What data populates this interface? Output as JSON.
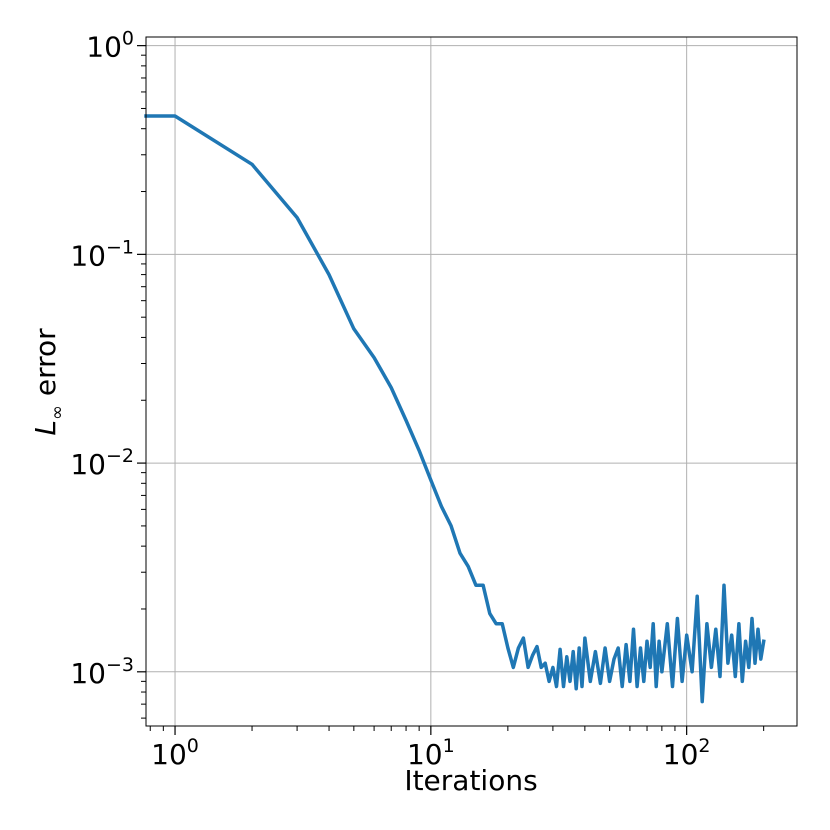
{
  "chart_data": {
    "type": "line",
    "xlabel": "Iterations",
    "ylabel_main": "L",
    "ylabel_sub": "∞",
    "ylabel_rest": " error",
    "xscale": "log",
    "yscale": "log",
    "xlim": [
      0.77,
      270
    ],
    "ylim": [
      0.00055,
      1.1
    ],
    "grid": true,
    "line_color": "#1f77b4",
    "x_ticks": [
      {
        "value": 1,
        "base": "10",
        "exp": "0"
      },
      {
        "value": 10,
        "base": "10",
        "exp": "1"
      },
      {
        "value": 100,
        "base": "10",
        "exp": "2"
      }
    ],
    "y_ticks": [
      {
        "value": 1,
        "base": "10",
        "exp": "0"
      },
      {
        "value": 0.1,
        "base": "10",
        "exp": "−1"
      },
      {
        "value": 0.01,
        "base": "10",
        "exp": "−2"
      },
      {
        "value": 0.001,
        "base": "10",
        "exp": "−3"
      }
    ],
    "series": [
      {
        "x": [
          0.77,
          1,
          2,
          3,
          4,
          5,
          6,
          7,
          8,
          9,
          10,
          11,
          12,
          13,
          14,
          15,
          16,
          17,
          18,
          19,
          20,
          21,
          22,
          23,
          24,
          25,
          26,
          27,
          28,
          29,
          30,
          31,
          32,
          33,
          34,
          35,
          36,
          37,
          38,
          39,
          40,
          42,
          44,
          46,
          48,
          50,
          52,
          54,
          56,
          58,
          60,
          62,
          64,
          66,
          68,
          70,
          72,
          74,
          76,
          78,
          80,
          84,
          88,
          92,
          96,
          100,
          105,
          110,
          115,
          120,
          125,
          130,
          135,
          140,
          145,
          150,
          155,
          160,
          165,
          170,
          175,
          180,
          185,
          190,
          195,
          200
        ],
        "y": [
          0.46,
          0.46,
          0.27,
          0.15,
          0.08,
          0.044,
          0.032,
          0.023,
          0.016,
          0.0115,
          0.0083,
          0.0062,
          0.005,
          0.0037,
          0.0032,
          0.0026,
          0.0026,
          0.0019,
          0.0017,
          0.0017,
          0.0013,
          0.00105,
          0.0013,
          0.00145,
          0.00105,
          0.0012,
          0.00132,
          0.00105,
          0.0011,
          0.0009,
          0.00105,
          0.00085,
          0.00128,
          0.00085,
          0.00118,
          0.0009,
          0.00125,
          0.00083,
          0.0013,
          0.00085,
          0.00145,
          0.0009,
          0.00125,
          0.00088,
          0.0013,
          0.0009,
          0.00115,
          0.0013,
          0.00085,
          0.00135,
          0.0009,
          0.0016,
          0.00085,
          0.0013,
          0.0009,
          0.0014,
          0.00105,
          0.0017,
          0.00085,
          0.0014,
          0.001,
          0.0017,
          0.00085,
          0.0018,
          0.0009,
          0.0015,
          0.001,
          0.0023,
          0.00072,
          0.0017,
          0.00105,
          0.0016,
          0.00095,
          0.0026,
          0.0011,
          0.0015,
          0.00095,
          0.0017,
          0.0009,
          0.0014,
          0.00105,
          0.0018,
          0.0011,
          0.0016,
          0.00115,
          0.0014
        ]
      }
    ]
  }
}
